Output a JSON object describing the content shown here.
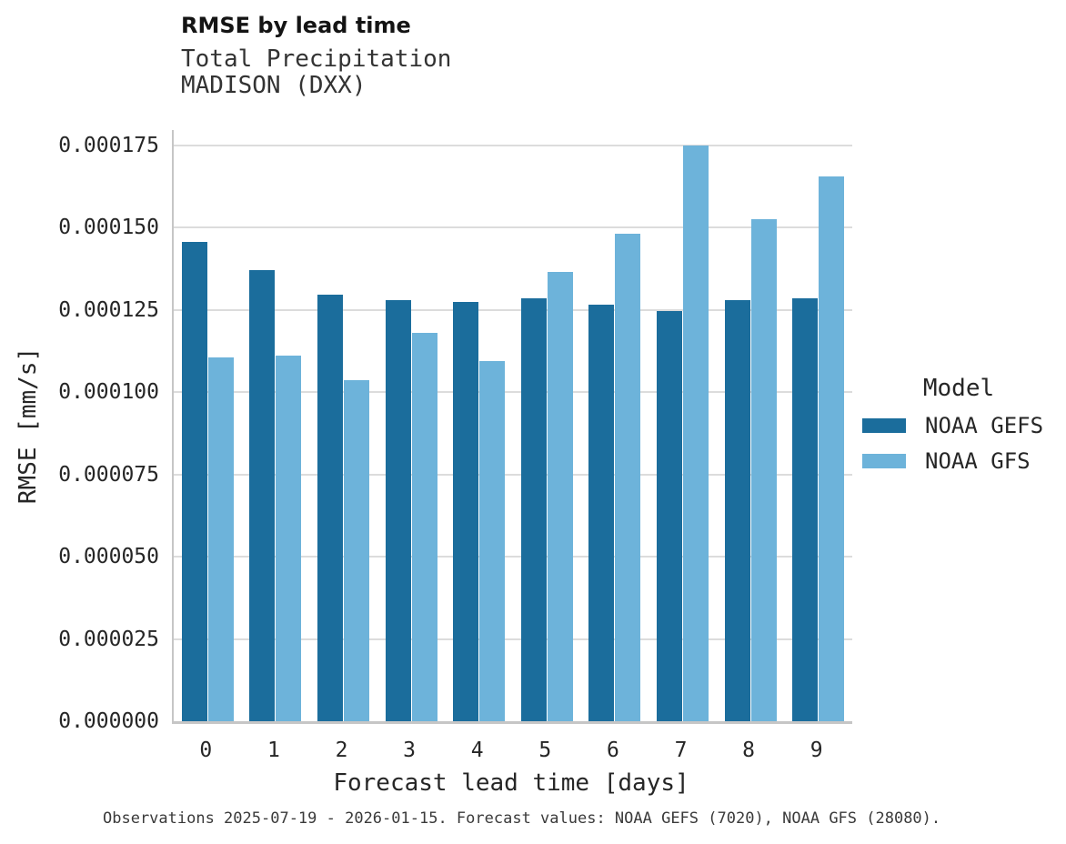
{
  "header": {
    "title": "RMSE by lead time",
    "subtitle": "Total Precipitation",
    "station": "MADISON (DXX)"
  },
  "legend": {
    "title": "Model",
    "entries": [
      {
        "label": "NOAA GEFS",
        "color": "#1b6d9c"
      },
      {
        "label": "NOAA GFS",
        "color": "#6db3da"
      }
    ]
  },
  "caption": "Observations 2025-07-19 - 2026-01-15. Forecast values: NOAA GEFS (7020), NOAA GFS (28080).",
  "chart_data": {
    "type": "bar",
    "title": "RMSE by lead time",
    "subtitle": [
      "Total Precipitation",
      "MADISON (DXX)"
    ],
    "xlabel": "Forecast lead time [days]",
    "ylabel": "RMSE [mm/s]",
    "categories": [
      "0",
      "1",
      "2",
      "3",
      "4",
      "5",
      "6",
      "7",
      "8",
      "9"
    ],
    "series": [
      {
        "name": "NOAA GEFS",
        "color": "#1b6d9c",
        "values": [
          0.0001455,
          0.000137,
          0.0001295,
          0.000128,
          0.0001275,
          0.0001285,
          0.0001265,
          0.0001245,
          0.000128,
          0.0001285
        ]
      },
      {
        "name": "NOAA GFS",
        "color": "#6db3da",
        "values": [
          0.0001105,
          0.000111,
          0.0001035,
          0.000118,
          0.0001095,
          0.0001365,
          0.000148,
          0.000175,
          0.0001525,
          0.0001655
        ]
      }
    ],
    "ylim": [
      0,
      0.0001796
    ],
    "yticks": [
      0,
      2.5e-05,
      5e-05,
      7.5e-05,
      0.0001,
      0.000125,
      0.00015,
      0.000175
    ],
    "ytick_labels": [
      "0.000000",
      "0.000025",
      "0.000050",
      "0.000075",
      "0.000100",
      "0.000125",
      "0.000150",
      "0.000175"
    ],
    "grid": true,
    "legend_position": "right",
    "legend_title": "Model"
  }
}
